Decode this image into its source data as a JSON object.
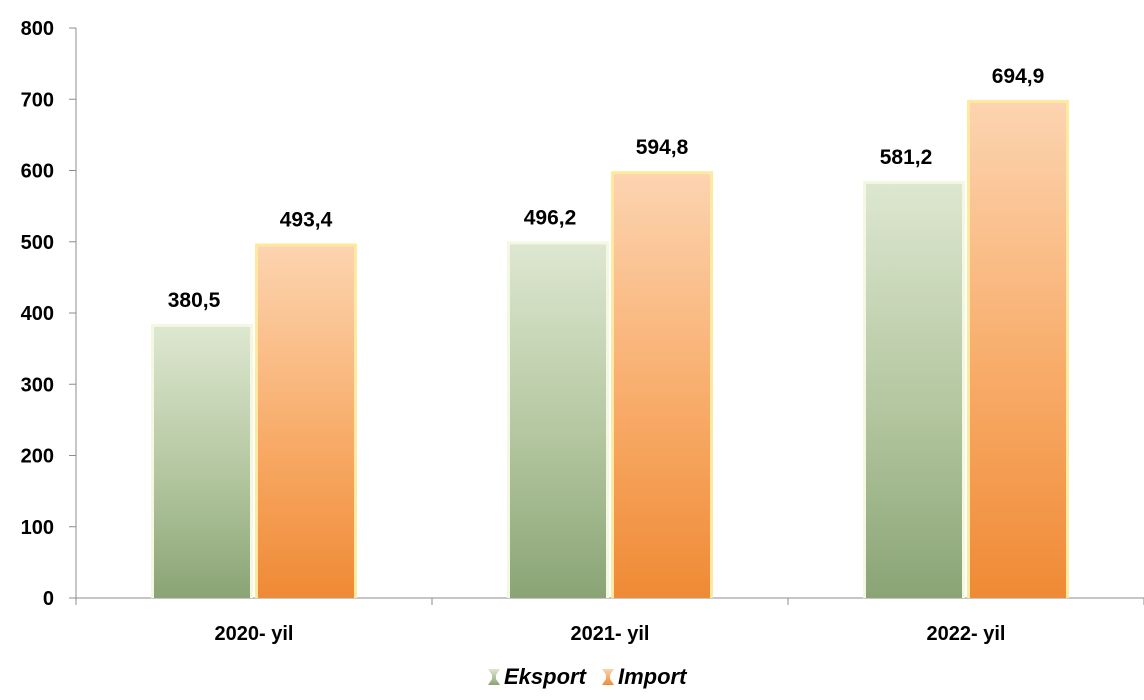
{
  "chart_data": {
    "type": "bar",
    "categories": [
      "2020- yil",
      "2021- yil",
      "2022- yil"
    ],
    "series": [
      {
        "name": "Eksport",
        "values": [
          380.5,
          496.2,
          581.2
        ],
        "labels": [
          "380,5",
          "496,2",
          "581,2"
        ],
        "color": "#9db58a"
      },
      {
        "name": "Import",
        "values": [
          493.4,
          594.8,
          694.9
        ],
        "labels": [
          "493,4",
          "594,8",
          "694,9"
        ],
        "color": "#f7a45a"
      }
    ],
    "title": "",
    "xlabel": "",
    "ylabel": "",
    "ylim": [
      0,
      800
    ],
    "yticks": [
      0,
      100,
      200,
      300,
      400,
      500,
      600,
      700,
      800
    ],
    "grid": false,
    "legend_position": "bottom"
  }
}
